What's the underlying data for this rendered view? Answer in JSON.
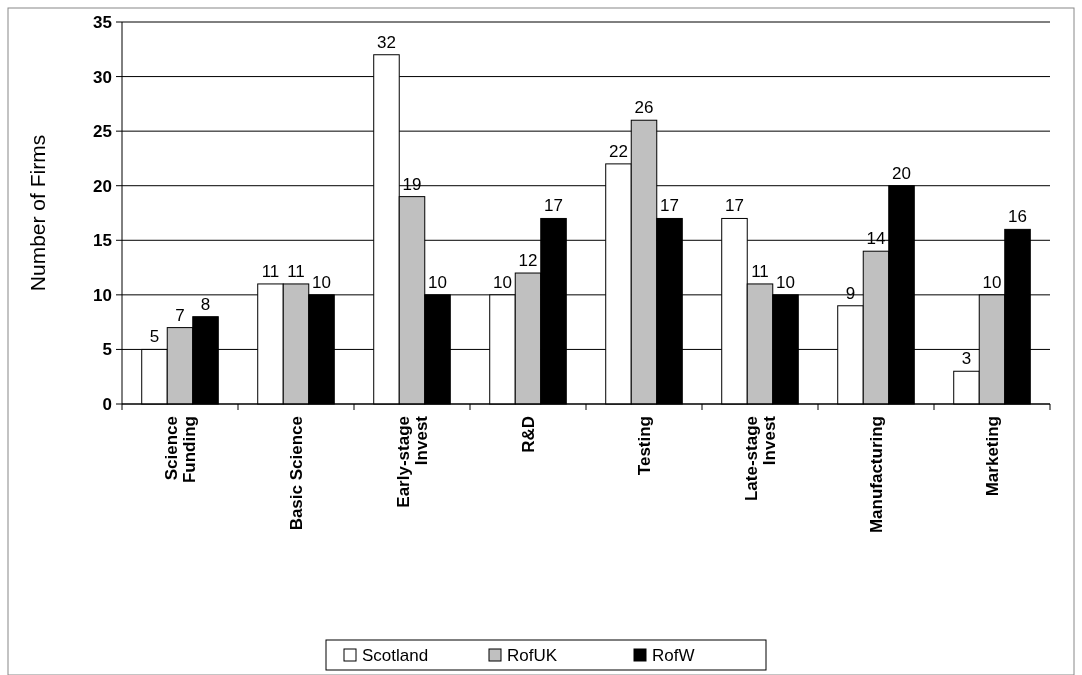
{
  "chart_data": {
    "type": "bar",
    "ylabel": "Number of Firms",
    "categories": [
      "Science\nFunding",
      "Basic Science",
      "Early-stage\nInvest",
      "R&D",
      "Testing",
      "Late-stage\nInvest",
      "Manufacturing",
      "Marketing"
    ],
    "series": [
      {
        "name": "Scotland",
        "color": "#ffffff",
        "values": [
          5,
          11,
          32,
          10,
          22,
          17,
          9,
          3
        ]
      },
      {
        "name": "RofUK",
        "color": "#c0c0c0",
        "values": [
          7,
          11,
          19,
          12,
          26,
          11,
          14,
          10
        ]
      },
      {
        "name": "RofW",
        "color": "#000000",
        "values": [
          8,
          10,
          10,
          17,
          17,
          10,
          20,
          16
        ]
      }
    ],
    "ylim": [
      0,
      35
    ],
    "yticks": [
      0,
      5,
      10,
      15,
      20,
      25,
      30,
      35
    ],
    "grid": "y",
    "data_labels": true,
    "legend": "bottom"
  }
}
